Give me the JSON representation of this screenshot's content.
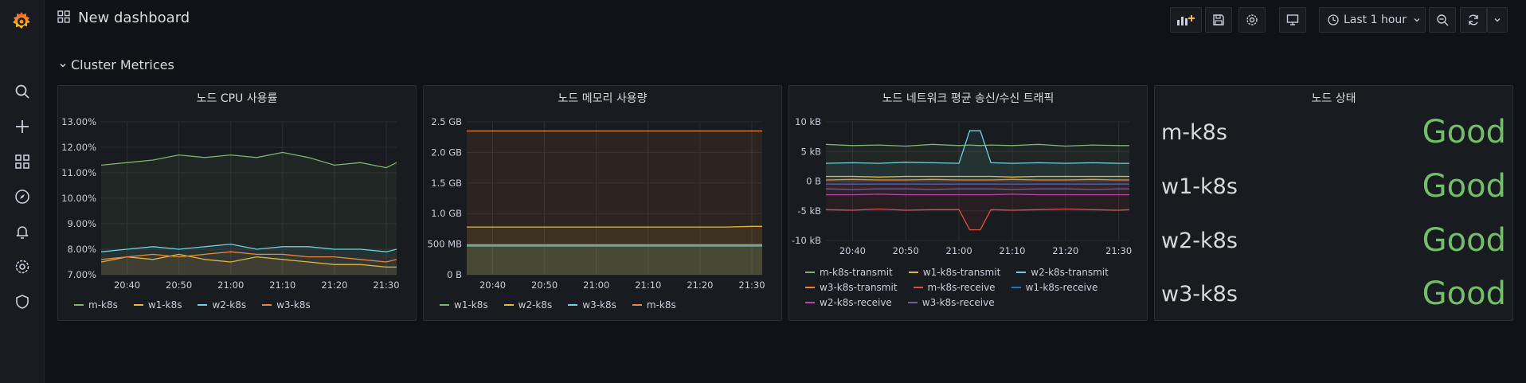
{
  "dashboard": {
    "title": "New dashboard"
  },
  "toolbar": {
    "time_range": "Last 1 hour"
  },
  "sidebar": {
    "items": [
      "search-icon",
      "plus-icon",
      "dashboards-icon",
      "explore-icon",
      "alerting-icon",
      "configuration-icon",
      "server-admin-icon"
    ]
  },
  "row": {
    "title": "Cluster Metrices"
  },
  "panels": {
    "cpu": {
      "title": "노드 CPU 사용률",
      "yticks": [
        "13.00%",
        "12.00%",
        "11.00%",
        "10.00%",
        "9.00%",
        "8.00%",
        "7.00%"
      ],
      "xticks": [
        "20:40",
        "20:50",
        "21:00",
        "21:10",
        "21:20",
        "21:30"
      ],
      "legend": [
        "m-k8s",
        "w1-k8s",
        "w2-k8s",
        "w3-k8s"
      ]
    },
    "mem": {
      "title": "노드 메모리 사용량",
      "yticks": [
        "2.5 GB",
        "2.0 GB",
        "1.5 GB",
        "1.0 GB",
        "500 MB",
        "0 B"
      ],
      "xticks": [
        "20:40",
        "20:50",
        "21:00",
        "21:10",
        "21:20",
        "21:30"
      ],
      "legend": [
        "w1-k8s",
        "w2-k8s",
        "w3-k8s",
        "m-k8s"
      ]
    },
    "net": {
      "title": "노드 네트워크 평균 송신/수신 트래픽",
      "yticks": [
        "10 kB",
        "5 kB",
        "0 B",
        "-5 kB",
        "-10 kB"
      ],
      "xticks": [
        "20:40",
        "20:50",
        "21:00",
        "21:10",
        "21:20",
        "21:30"
      ],
      "legend": [
        "m-k8s-transmit",
        "w1-k8s-transmit",
        "w2-k8s-transmit",
        "w3-k8s-transmit",
        "m-k8s-receive",
        "w1-k8s-receive",
        "w2-k8s-receive",
        "w3-k8s-receive"
      ]
    },
    "status": {
      "title": "노드 상태",
      "rows": [
        {
          "name": "m-k8s",
          "value": "Good"
        },
        {
          "name": "w1-k8s",
          "value": "Good"
        },
        {
          "name": "w2-k8s",
          "value": "Good"
        },
        {
          "name": "w3-k8s",
          "value": "Good"
        }
      ]
    }
  },
  "colors": {
    "m": "#7eb26d",
    "w1": "#eab839",
    "w2": "#6ed0e0",
    "w3": "#ef843c",
    "m_recv": "#e24d42",
    "w1_recv": "#1f78c1",
    "w2_recv": "#ba43a9",
    "w3_recv": "#705da0",
    "good": "#73bf69"
  },
  "chart_data": [
    {
      "type": "line",
      "title": "노드 CPU 사용률",
      "x": [
        "20:35",
        "20:40",
        "20:45",
        "20:50",
        "20:55",
        "21:00",
        "21:05",
        "21:10",
        "21:15",
        "21:20",
        "21:25",
        "21:30",
        "21:32"
      ],
      "ylim": [
        7,
        13
      ],
      "series": [
        {
          "name": "m-k8s",
          "values": [
            11.3,
            11.4,
            11.5,
            11.7,
            11.6,
            11.7,
            11.6,
            11.8,
            11.6,
            11.3,
            11.4,
            11.2,
            11.4
          ]
        },
        {
          "name": "w1-k8s",
          "values": [
            7.5,
            7.7,
            7.6,
            7.8,
            7.6,
            7.5,
            7.7,
            7.6,
            7.5,
            7.4,
            7.4,
            7.3,
            7.3
          ]
        },
        {
          "name": "w2-k8s",
          "values": [
            7.9,
            8.0,
            8.1,
            8.0,
            8.1,
            8.2,
            8.0,
            8.1,
            8.1,
            8.0,
            8.0,
            7.9,
            8.0
          ]
        },
        {
          "name": "w3-k8s",
          "values": [
            7.6,
            7.7,
            7.8,
            7.7,
            7.8,
            7.9,
            7.8,
            7.8,
            7.7,
            7.7,
            7.6,
            7.5,
            7.6
          ]
        }
      ]
    },
    {
      "type": "area",
      "title": "노드 메모리 사용량",
      "x": [
        "20:35",
        "20:40",
        "20:45",
        "20:50",
        "20:55",
        "21:00",
        "21:05",
        "21:10",
        "21:15",
        "21:20",
        "21:25",
        "21:30",
        "21:32"
      ],
      "ylim": [
        0,
        2.5
      ],
      "series": [
        {
          "name": "w1-k8s",
          "values": [
            0.49,
            0.49,
            0.49,
            0.49,
            0.49,
            0.49,
            0.49,
            0.49,
            0.49,
            0.49,
            0.49,
            0.49,
            0.49
          ]
        },
        {
          "name": "w2-k8s",
          "values": [
            0.78,
            0.78,
            0.78,
            0.78,
            0.78,
            0.78,
            0.78,
            0.78,
            0.78,
            0.78,
            0.78,
            0.79,
            0.79
          ]
        },
        {
          "name": "w3-k8s",
          "values": [
            0.47,
            0.47,
            0.47,
            0.47,
            0.47,
            0.47,
            0.47,
            0.47,
            0.47,
            0.47,
            0.47,
            0.47,
            0.47
          ]
        },
        {
          "name": "m-k8s",
          "values": [
            2.35,
            2.35,
            2.35,
            2.35,
            2.35,
            2.35,
            2.35,
            2.35,
            2.35,
            2.35,
            2.35,
            2.35,
            2.35
          ]
        }
      ]
    },
    {
      "type": "line",
      "title": "노드 네트워크 평균 송신/수신 트래픽",
      "x": [
        "20:35",
        "20:40",
        "20:45",
        "20:50",
        "20:55",
        "21:00",
        "21:02",
        "21:04",
        "21:06",
        "21:10",
        "21:15",
        "21:20",
        "21:25",
        "21:30",
        "21:32"
      ],
      "ylim": [
        -10,
        10
      ],
      "series": [
        {
          "name": "m-k8s-transmit",
          "values": [
            6.2,
            6.0,
            6.1,
            5.9,
            6.2,
            6.0,
            6.1,
            6.0,
            6.1,
            6.0,
            6.2,
            5.9,
            6.1,
            6.0,
            6.0
          ]
        },
        {
          "name": "w1-k8s-transmit",
          "values": [
            0.8,
            0.8,
            0.7,
            0.8,
            0.8,
            0.8,
            0.8,
            0.8,
            0.8,
            0.7,
            0.8,
            0.8,
            0.8,
            0.8,
            0.8
          ]
        },
        {
          "name": "w2-k8s-transmit",
          "values": [
            3.0,
            3.1,
            3.0,
            3.2,
            3.1,
            3.0,
            8.5,
            8.5,
            3.1,
            3.0,
            3.1,
            3.0,
            3.1,
            3.0,
            3.0
          ]
        },
        {
          "name": "w3-k8s-transmit",
          "values": [
            0.2,
            0.3,
            0.2,
            0.2,
            0.3,
            0.2,
            0.2,
            0.2,
            0.2,
            0.3,
            0.2,
            0.2,
            0.3,
            0.2,
            0.2
          ]
        },
        {
          "name": "m-k8s-receive",
          "values": [
            -4.8,
            -4.9,
            -4.7,
            -4.9,
            -4.8,
            -4.8,
            -8.2,
            -8.2,
            -4.8,
            -4.9,
            -4.8,
            -4.7,
            -4.8,
            -4.9,
            -4.8
          ]
        },
        {
          "name": "w1-k8s-receive",
          "values": [
            -0.5,
            -0.5,
            -0.5,
            -0.5,
            -0.5,
            -0.5,
            -0.5,
            -0.5,
            -0.5,
            -0.5,
            -0.5,
            -0.5,
            -0.5,
            -0.5,
            -0.5
          ]
        },
        {
          "name": "w2-k8s-receive",
          "values": [
            -2.3,
            -2.3,
            -2.2,
            -2.3,
            -2.3,
            -2.3,
            -2.3,
            -2.3,
            -2.3,
            -2.2,
            -2.3,
            -2.3,
            -2.3,
            -2.3,
            -2.3
          ]
        },
        {
          "name": "w3-k8s-receive",
          "values": [
            -1.3,
            -1.4,
            -1.3,
            -1.3,
            -1.4,
            -1.3,
            -1.3,
            -1.3,
            -1.3,
            -1.4,
            -1.3,
            -1.3,
            -1.4,
            -1.3,
            -1.3
          ]
        }
      ]
    }
  ]
}
